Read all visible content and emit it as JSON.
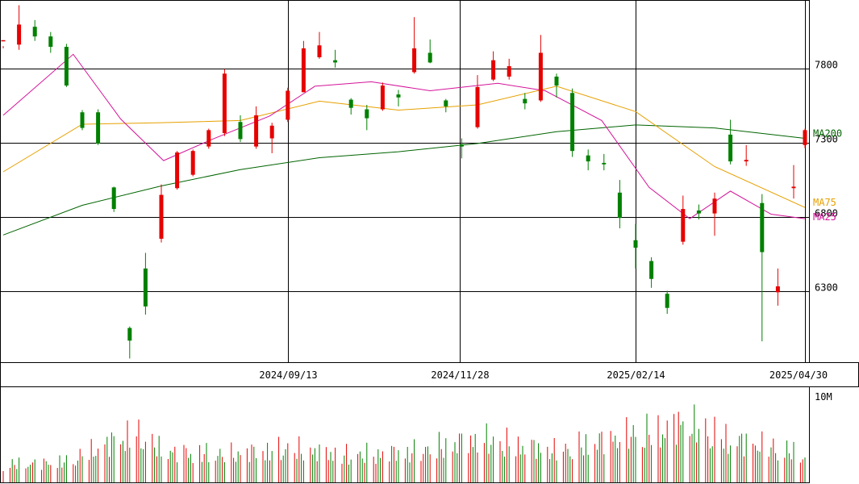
{
  "chart_data": {
    "type": "candlestick",
    "price_axis": {
      "ticks": [
        6300,
        6800,
        7300,
        7800
      ],
      "tick_labels": [
        "6300",
        "6800",
        "7300",
        "7800"
      ],
      "range": [
        5825,
        8260
      ]
    },
    "date_axis": {
      "labels": [
        "2024/09/13",
        "2024/11/28",
        "2025/02/14",
        "2025/04/30"
      ],
      "range": [
        "2024/05/10",
        "2025/04/30"
      ]
    },
    "volume_axis": {
      "tick_labels": [
        "10M"
      ],
      "range": [
        0,
        11000000
      ]
    },
    "grid": true,
    "legend": [
      {
        "name": "MA200",
        "color": "#006400"
      },
      {
        "name": "MA75",
        "color": "#e6a000"
      },
      {
        "name": "MA25",
        "color": "#d4149a"
      }
    ],
    "colors": {
      "up": "#e60000",
      "down": "#008000",
      "ma200": "#006400",
      "ma75": "#e6a000",
      "ma25": "#d4149a"
    },
    "ma200": [
      [
        "2024/05/10",
        6680
      ],
      [
        "2024/06/14",
        6880
      ],
      [
        "2024/07/19",
        7010
      ],
      [
        "2024/08/23",
        7120
      ],
      [
        "2024/09/27",
        7200
      ],
      [
        "2024/11/01",
        7240
      ],
      [
        "2024/12/06",
        7295
      ],
      [
        "2025/01/10",
        7375
      ],
      [
        "2025/02/14",
        7420
      ],
      [
        "2025/03/21",
        7400
      ],
      [
        "2025/04/30",
        7330
      ]
    ],
    "ma75": [
      [
        "2024/05/10",
        7105
      ],
      [
        "2024/06/14",
        7425
      ],
      [
        "2024/07/19",
        7435
      ],
      [
        "2024/08/23",
        7450
      ],
      [
        "2024/09/27",
        7580
      ],
      [
        "2024/11/01",
        7520
      ],
      [
        "2024/12/06",
        7555
      ],
      [
        "2025/01/10",
        7680
      ],
      [
        "2025/02/14",
        7510
      ],
      [
        "2025/03/21",
        7140
      ],
      [
        "2025/04/30",
        6865
      ]
    ],
    "ma25": [
      [
        "2024/05/10",
        7485
      ],
      [
        "2024/06/10",
        7895
      ],
      [
        "2024/07/01",
        7460
      ],
      [
        "2024/07/20",
        7180
      ],
      [
        "2024/08/10",
        7320
      ],
      [
        "2024/09/05",
        7480
      ],
      [
        "2024/09/25",
        7680
      ],
      [
        "2024/10/20",
        7710
      ],
      [
        "2024/11/15",
        7650
      ],
      [
        "2024/12/15",
        7700
      ],
      [
        "2025/01/05",
        7650
      ],
      [
        "2025/01/30",
        7450
      ],
      [
        "2025/02/20",
        7000
      ],
      [
        "2025/03/10",
        6790
      ],
      [
        "2025/03/28",
        6975
      ],
      [
        "2025/04/15",
        6820
      ],
      [
        "2025/04/30",
        6790
      ]
    ],
    "candles": [
      [
        "2024/05/10",
        7985,
        7990,
        7950,
        7935
      ],
      [
        "2024/05/17",
        7960,
        8095,
        8225,
        7925
      ],
      [
        "2024/05/24",
        8080,
        8015,
        8125,
        7985
      ],
      [
        "2024/05/31",
        8015,
        7945,
        8045,
        7905
      ],
      [
        "2024/06/07",
        7945,
        7685,
        7965,
        7675
      ],
      [
        "2024/06/14",
        7505,
        7400,
        7520,
        7385
      ],
      [
        "2024/06/21",
        7505,
        7295,
        7525,
        7285
      ],
      [
        "2024/06/28",
        7000,
        6855,
        7005,
        6835
      ],
      [
        "2024/07/05",
        6055,
        5970,
        6065,
        5850
      ],
      [
        "2024/07/12",
        6455,
        6200,
        6560,
        6145
      ],
      [
        "2024/07/19",
        6655,
        6950,
        7020,
        6630
      ],
      [
        "2024/07/26",
        6995,
        7235,
        7245,
        6985
      ],
      [
        "2024/08/02",
        7085,
        7245,
        7255,
        7075
      ],
      [
        "2024/08/09",
        7275,
        7385,
        7395,
        7260
      ],
      [
        "2024/08/16",
        7365,
        7765,
        7795,
        7345
      ],
      [
        "2024/08/23",
        7440,
        7325,
        7485,
        7305
      ],
      [
        "2024/08/30",
        7275,
        7485,
        7545,
        7260
      ],
      [
        "2024/09/06",
        7330,
        7415,
        7435,
        7230
      ],
      [
        "2024/09/13",
        7455,
        7650,
        7670,
        7440
      ],
      [
        "2024/09/20",
        7640,
        7935,
        7985,
        7640
      ],
      [
        "2024/09/27",
        7875,
        7955,
        8045,
        7865
      ],
      [
        "2024/10/04",
        7855,
        7840,
        7925,
        7805
      ],
      [
        "2024/10/11",
        7590,
        7535,
        7600,
        7490
      ],
      [
        "2024/10/18",
        7525,
        7465,
        7555,
        7385
      ],
      [
        "2024/10/25",
        7525,
        7685,
        7705,
        7515
      ],
      [
        "2024/11/01",
        7625,
        7605,
        7655,
        7545
      ],
      [
        "2024/11/08",
        7775,
        7935,
        8145,
        7765
      ],
      [
        "2024/11/15",
        7905,
        7840,
        7995,
        7835
      ],
      [
        "2024/11/22",
        7585,
        7545,
        7595,
        7505
      ],
      [
        "2024/11/29",
        7290,
        7275,
        7330,
        7195
      ],
      [
        "2024/12/06",
        7405,
        7675,
        7755,
        7395
      ],
      [
        "2024/12/13",
        7725,
        7855,
        7915,
        7715
      ],
      [
        "2024/12/20",
        7745,
        7815,
        7865,
        7725
      ],
      [
        "2024/12/27",
        7595,
        7565,
        7635,
        7525
      ],
      [
        "2025/01/03",
        7585,
        7905,
        8025,
        7575
      ],
      [
        "2025/01/10",
        7745,
        7685,
        7765,
        7605
      ],
      [
        "2025/01/17",
        7635,
        7245,
        7665,
        7205
      ],
      [
        "2025/01/24",
        7215,
        7175,
        7255,
        7115
      ],
      [
        "2025/01/31",
        7165,
        7155,
        7225,
        7115
      ],
      [
        "2025/02/07",
        6965,
        6795,
        7050,
        6725
      ],
      [
        "2025/02/14",
        6645,
        6595,
        6755,
        6455
      ],
      [
        "2025/02/21",
        6505,
        6385,
        6530,
        6325
      ],
      [
        "2025/02/28",
        6285,
        6190,
        6305,
        6150
      ],
      [
        "2025/03/07",
        6635,
        6855,
        6945,
        6615
      ],
      [
        "2025/03/14",
        6845,
        6825,
        6885,
        6785
      ],
      [
        "2025/03/21",
        6825,
        6925,
        6965,
        6675
      ],
      [
        "2025/03/28",
        7355,
        7175,
        7455,
        7155
      ],
      [
        "2025/04/04",
        7175,
        7185,
        7285,
        7145
      ],
      [
        "2025/04/11",
        6895,
        6565,
        6955,
        5965
      ],
      [
        "2025/04/18",
        6295,
        6335,
        6455,
        6205
      ],
      [
        "2025/04/25",
        6995,
        7005,
        7150,
        6925
      ],
      [
        "2025/04/30",
        7285,
        7385,
        7395,
        7265
      ]
    ],
    "volume": [
      [
        "2024/05/10",
        2900000
      ],
      [
        "2024/06/07",
        3400000
      ],
      [
        "2024/07/05",
        8000000
      ],
      [
        "2024/07/12",
        7500000
      ],
      [
        "2024/07/19",
        5200000
      ],
      [
        "2024/08/16",
        4600000
      ],
      [
        "2024/09/13",
        5600000
      ],
      [
        "2024/10/11",
        4500000
      ],
      [
        "2024/11/08",
        5100000
      ],
      [
        "2024/12/06",
        7200000
      ],
      [
        "2025/01/10",
        5200000
      ],
      [
        "2025/02/07",
        7600000
      ],
      [
        "2025/02/28",
        8800000
      ],
      [
        "2025/03/07",
        10100000
      ],
      [
        "2025/03/28",
        7000000
      ],
      [
        "2025/04/11",
        6200000
      ],
      [
        "2025/04/30",
        4500000
      ]
    ]
  }
}
